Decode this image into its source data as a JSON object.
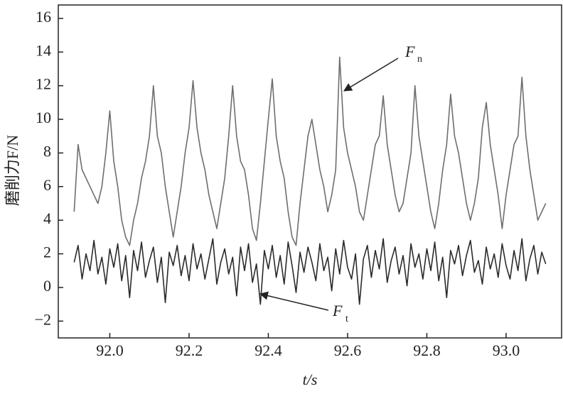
{
  "chart_data": {
    "type": "line",
    "ylabel": "磨削力F/N",
    "xlabel": "t/s",
    "annotations": [
      {
        "text": "F",
        "sub": "n"
      },
      {
        "text": "F",
        "sub": "t"
      }
    ],
    "xlim": [
      91.87,
      93.14
    ],
    "ylim": [
      -3,
      16.8
    ],
    "xticks": [
      {
        "value": 92,
        "label": "92.0"
      },
      92.2,
      92.4,
      92.6,
      92.8,
      {
        "value": 93,
        "label": "93.0"
      }
    ],
    "yticks": [
      {
        "value": -2,
        "label": "−2"
      },
      0,
      2,
      4,
      6,
      8,
      10,
      12,
      14,
      16
    ],
    "grid": false,
    "x": [
      91.91,
      91.92,
      91.93,
      91.94,
      91.95,
      91.96,
      91.97,
      91.98,
      91.99,
      92.0,
      92.01,
      92.02,
      92.03,
      92.04,
      92.05,
      92.06,
      92.07,
      92.08,
      92.09,
      92.1,
      92.11,
      92.12,
      92.13,
      92.14,
      92.15,
      92.16,
      92.17,
      92.18,
      92.19,
      92.2,
      92.21,
      92.22,
      92.23,
      92.24,
      92.25,
      92.26,
      92.27,
      92.28,
      92.29,
      92.3,
      92.31,
      92.32,
      92.33,
      92.34,
      92.35,
      92.36,
      92.37,
      92.38,
      92.39,
      92.4,
      92.41,
      92.42,
      92.43,
      92.44,
      92.45,
      92.46,
      92.47,
      92.48,
      92.49,
      92.5,
      92.51,
      92.52,
      92.53,
      92.54,
      92.55,
      92.56,
      92.57,
      92.58,
      92.59,
      92.6,
      92.61,
      92.62,
      92.63,
      92.64,
      92.65,
      92.66,
      92.67,
      92.68,
      92.69,
      92.7,
      92.71,
      92.72,
      92.73,
      92.74,
      92.75,
      92.76,
      92.77,
      92.78,
      92.79,
      92.8,
      92.81,
      92.82,
      92.83,
      92.84,
      92.85,
      92.86,
      92.87,
      92.88,
      92.89,
      92.9,
      92.91,
      92.92,
      92.93,
      92.94,
      92.95,
      92.96,
      92.97,
      92.98,
      92.99,
      93.0,
      93.01,
      93.02,
      93.03,
      93.04,
      93.05,
      93.06,
      93.07,
      93.08,
      93.09,
      93.1
    ],
    "series": [
      {
        "name": "Fn",
        "color": "#6e6e6e",
        "values": [
          4.5,
          8.5,
          7,
          6.5,
          6,
          5.5,
          5,
          6,
          8,
          10.5,
          7.5,
          6,
          4,
          3,
          2.5,
          4,
          5,
          6.5,
          7.5,
          9,
          12,
          9,
          8,
          6,
          4.5,
          3,
          4.5,
          6,
          8,
          9.5,
          12.3,
          9.5,
          8,
          7,
          5.5,
          4.5,
          3.5,
          5,
          6.5,
          9,
          12,
          9,
          7.5,
          7,
          5.5,
          3.5,
          2.8,
          5,
          7.5,
          10,
          12.4,
          9,
          7.5,
          6.5,
          4.5,
          3,
          2.5,
          5,
          7,
          9,
          10,
          8.5,
          7,
          6,
          4.5,
          5.5,
          7,
          13.7,
          9.5,
          8,
          7,
          6,
          4.5,
          4,
          5.5,
          7,
          8.5,
          9,
          11.4,
          8.5,
          7,
          5.5,
          4.5,
          5,
          6.5,
          8,
          12,
          9,
          7.5,
          6,
          4.5,
          3.5,
          5,
          7,
          8.5,
          11.5,
          9,
          8,
          6.5,
          5,
          4,
          5,
          6.5,
          9.5,
          11,
          8.5,
          7,
          5.5,
          3.5,
          5.5,
          7,
          8.5,
          9,
          12.5,
          9,
          7,
          5.5,
          4,
          4.5,
          5
        ]
      },
      {
        "name": "Ft",
        "color": "#2a2a2a",
        "values": [
          1.5,
          2.5,
          0.5,
          2,
          1,
          2.8,
          0.8,
          1.8,
          0.2,
          2.3,
          1.2,
          2.6,
          0.4,
          1.9,
          -0.6,
          2.2,
          1,
          2.7,
          0.6,
          1.6,
          2.4,
          0.3,
          1.8,
          -0.9,
          2.1,
          1.3,
          2.5,
          0.7,
          1.9,
          0.4,
          2.6,
          1.1,
          2,
          0.5,
          1.7,
          2.9,
          0.2,
          1.5,
          2.3,
          0.8,
          1.8,
          -0.5,
          2.4,
          1,
          2.6,
          0.3,
          1.4,
          -1,
          2.2,
          1.1,
          2.5,
          0.6,
          1.9,
          0.2,
          2.7,
          1.3,
          -0.3,
          2.1,
          0.9,
          2.4,
          1.5,
          0.4,
          2.6,
          1,
          1.8,
          -0.2,
          2.3,
          0.8,
          2.8,
          1.2,
          0.5,
          2,
          -1,
          1.7,
          2.5,
          0.6,
          2.2,
          1.1,
          2.9,
          0.3,
          1.6,
          2.4,
          0.8,
          1.9,
          0.1,
          2.6,
          1.2,
          2,
          0.5,
          2.3,
          1,
          2.7,
          0.4,
          1.8,
          -0.6,
          2.2,
          1.4,
          2.5,
          0.7,
          1.9,
          2.8,
          0.9,
          1.6,
          0.2,
          2.4,
          1.1,
          2,
          0.6,
          2.6,
          1.3,
          0.5,
          2.2,
          1,
          2.9,
          0.4,
          1.7,
          2.5,
          0.8,
          2.1,
          1.4
        ]
      }
    ]
  }
}
